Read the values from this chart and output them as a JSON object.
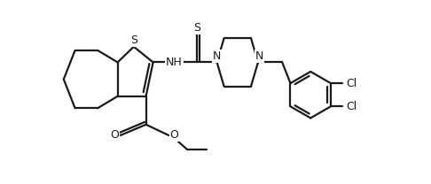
{
  "bg_color": "#ffffff",
  "line_color": "#1a1a1a",
  "line_width": 1.6,
  "font_size": 9,
  "figsize": [
    4.86,
    2.08
  ],
  "dpi": 100,
  "xlim": [
    0,
    11
  ],
  "ylim": [
    0,
    6.5
  ]
}
